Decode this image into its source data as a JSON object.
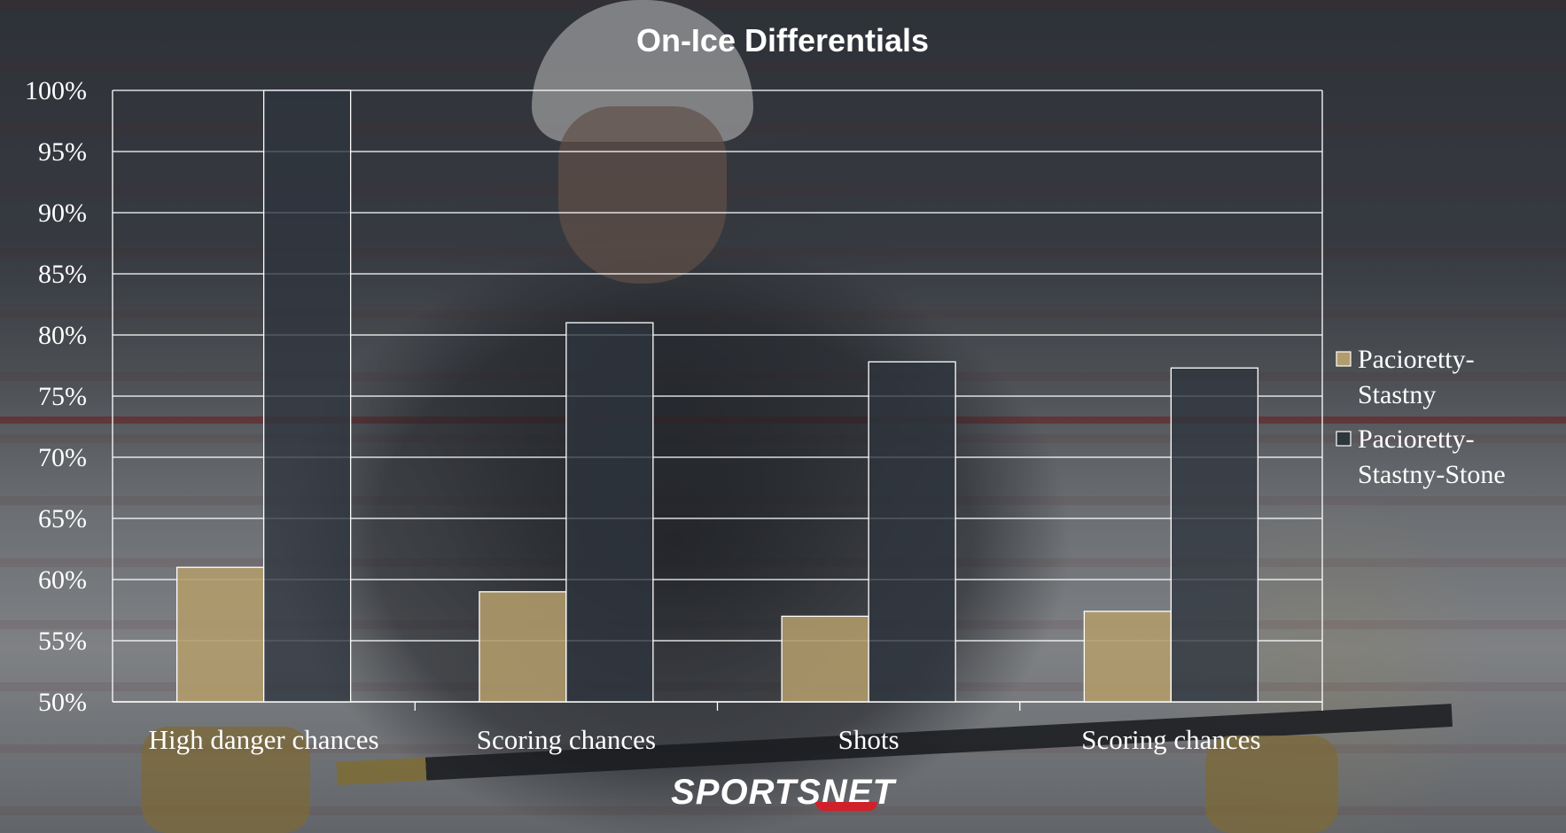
{
  "colors": {
    "series_1": "#b39c6b",
    "series_2": "#2e353d",
    "grid": "#ffffff",
    "text": "#ffffff"
  },
  "watermark": {
    "text": "SPORTSNET"
  },
  "chart_data": {
    "type": "bar",
    "title": "On-Ice Differentials",
    "xlabel": "",
    "ylabel": "",
    "categories": [
      "High danger chances",
      "Scoring chances",
      "Shots",
      "Scoring chances"
    ],
    "series": [
      {
        "name": "Pacioretty-Stastny",
        "values": [
          61,
          59,
          57,
          57.4
        ]
      },
      {
        "name": "Pacioretty-Stastny-Stone",
        "values": [
          100,
          81,
          77.8,
          77.3
        ]
      }
    ],
    "ylim": [
      50,
      100
    ],
    "yticks": [
      "50%",
      "55%",
      "60%",
      "65%",
      "70%",
      "75%",
      "80%",
      "85%",
      "90%",
      "95%",
      "100%"
    ],
    "grid": true,
    "legend": "right"
  }
}
